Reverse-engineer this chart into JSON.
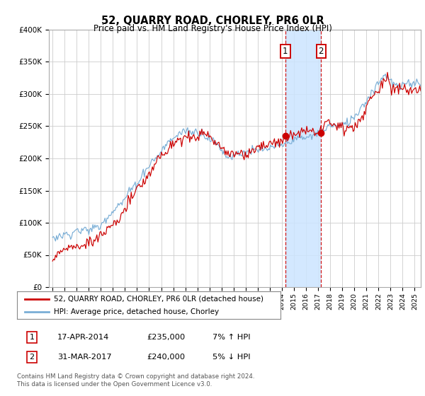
{
  "title": "52, QUARRY ROAD, CHORLEY, PR6 0LR",
  "subtitle": "Price paid vs. HM Land Registry's House Price Index (HPI)",
  "ylim": [
    0,
    400000
  ],
  "yticks": [
    0,
    50000,
    100000,
    150000,
    200000,
    250000,
    300000,
    350000,
    400000
  ],
  "ytick_labels": [
    "£0",
    "£50K",
    "£100K",
    "£150K",
    "£200K",
    "£250K",
    "£300K",
    "£350K",
    "£400K"
  ],
  "xmin": 1994.7,
  "xmax": 2025.5,
  "sale1_date": 2014.29,
  "sale1_price": 235000,
  "sale2_date": 2017.25,
  "sale2_price": 240000,
  "shade_color": "#cce5ff",
  "red_line_color": "#cc0000",
  "blue_line_color": "#7aaed6",
  "marker_color": "#cc0000",
  "box_edge_color": "#cc0000",
  "grid_color": "#cccccc",
  "background_color": "#ffffff",
  "footer": "Contains HM Land Registry data © Crown copyright and database right 2024.\nThis data is licensed under the Open Government Licence v3.0.",
  "legend_label_red": "52, QUARRY ROAD, CHORLEY, PR6 0LR (detached house)",
  "legend_label_blue": "HPI: Average price, detached house, Chorley",
  "table": [
    {
      "num": "1",
      "date": "17-APR-2014",
      "price": "£235,000",
      "hpi": "7% ↑ HPI"
    },
    {
      "num": "2",
      "date": "31-MAR-2017",
      "price": "£240,000",
      "hpi": "5% ↓ HPI"
    }
  ]
}
